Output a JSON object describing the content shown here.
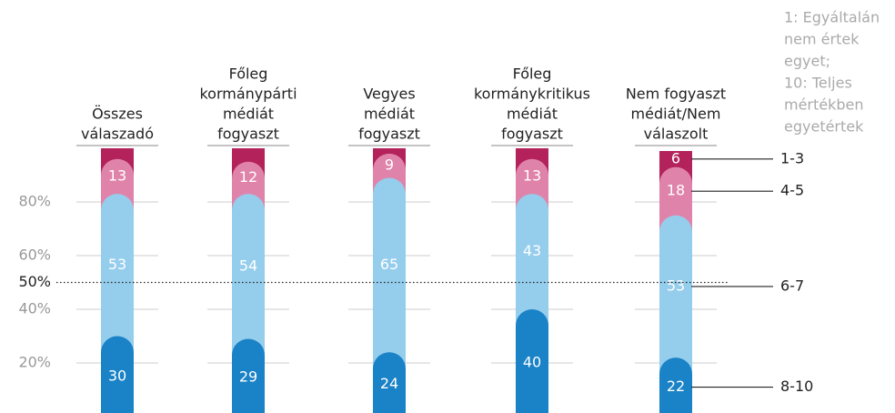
{
  "chart_data": {
    "type": "stacked_bar",
    "categories": [
      [
        "Összes",
        "válaszadó"
      ],
      [
        "Főleg",
        "kormánypárti",
        "médiát",
        "fogyaszt"
      ],
      [
        "Vegyes",
        "médiát",
        "fogyaszt"
      ],
      [
        "Főleg",
        "kormánykritikus",
        "médiát",
        "fogyaszt"
      ],
      [
        "Nem fogyaszt",
        "médiát/Nem",
        "válaszolt"
      ]
    ],
    "series": [
      {
        "name": "8-10",
        "color": "#1a82c6",
        "values": [
          30,
          29,
          24,
          40,
          22
        ]
      },
      {
        "name": "6-7",
        "color": "#95cdec",
        "values": [
          53,
          54,
          65,
          43,
          53
        ]
      },
      {
        "name": "4-5",
        "color": "#e083aa",
        "values": [
          13,
          12,
          9,
          13,
          18
        ]
      },
      {
        "name": "1-3",
        "color": "#b3225b",
        "values": [
          4,
          5,
          2,
          4,
          6
        ],
        "value_labels": [
          null,
          null,
          null,
          null,
          "6"
        ]
      }
    ],
    "ylim": [
      0,
      100
    ],
    "yticks": [
      {
        "value": 20,
        "label": "20%"
      },
      {
        "value": 40,
        "label": "40%"
      },
      {
        "value": 60,
        "label": "60%"
      },
      {
        "value": 80,
        "label": "80%"
      }
    ],
    "reference_line": {
      "value": 50,
      "label": "50%"
    },
    "grid": true,
    "note": [
      "1: Egyáltalán",
      "nem értek",
      "egyet;",
      "10: Teljes",
      "mértékben",
      "egyetértek"
    ]
  }
}
